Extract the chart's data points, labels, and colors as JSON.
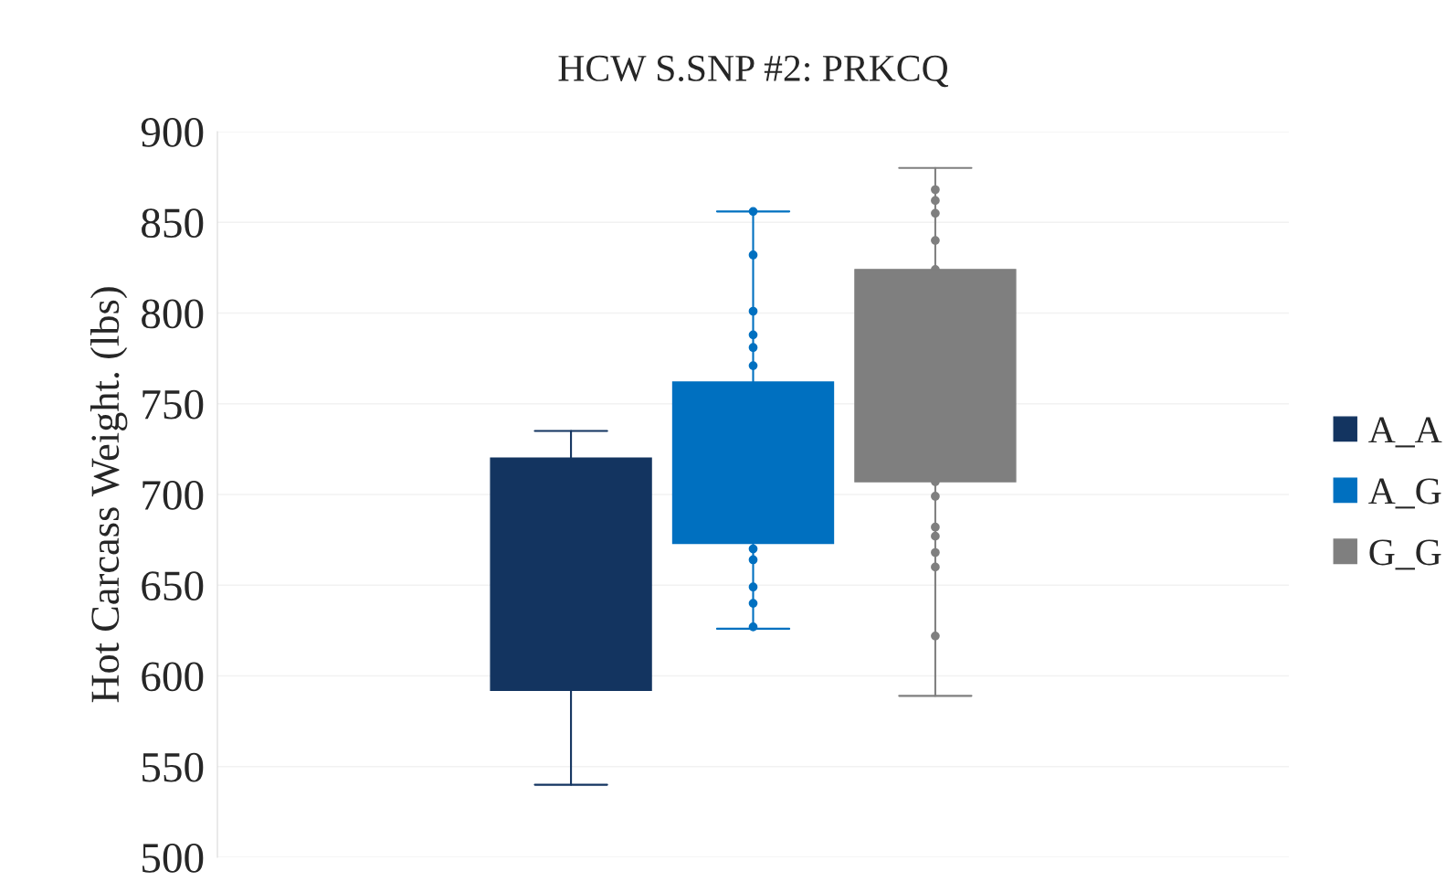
{
  "chart_data": {
    "type": "box",
    "title": "HCW S.SNP #2: PRKCQ",
    "ylabel": "Hot Carcass Weight. (lbs)",
    "categories": [
      null
    ],
    "series": [
      {
        "name": "A_A",
        "color": "#133460",
        "boxes": [
          {
            "low": 540,
            "q1": 592,
            "q3": 720,
            "high": 735
          }
        ]
      },
      {
        "name": "A_G",
        "color": "#0070c0",
        "boxes": [
          {
            "low": 626,
            "q1": 673,
            "q3": 762,
            "high": 856,
            "outliers": [
              856,
              832,
              801,
              788,
              781,
              771,
              670,
              664,
              649,
              640,
              627
            ]
          }
        ]
      },
      {
        "name": "G_G",
        "color": "#7f7f7f",
        "boxes": [
          {
            "low": 589,
            "q1": 707,
            "q3": 824,
            "high": 880,
            "outliers": [
              868,
              862,
              855,
              840,
              824,
              707,
              699,
              682,
              677,
              668,
              660,
              622
            ]
          }
        ]
      }
    ],
    "ylim": [
      500,
      900
    ],
    "yticks": [
      500,
      550,
      600,
      650,
      700,
      750,
      800,
      850,
      900
    ],
    "grid": "y",
    "legend": "right",
    "marker": "circle"
  }
}
